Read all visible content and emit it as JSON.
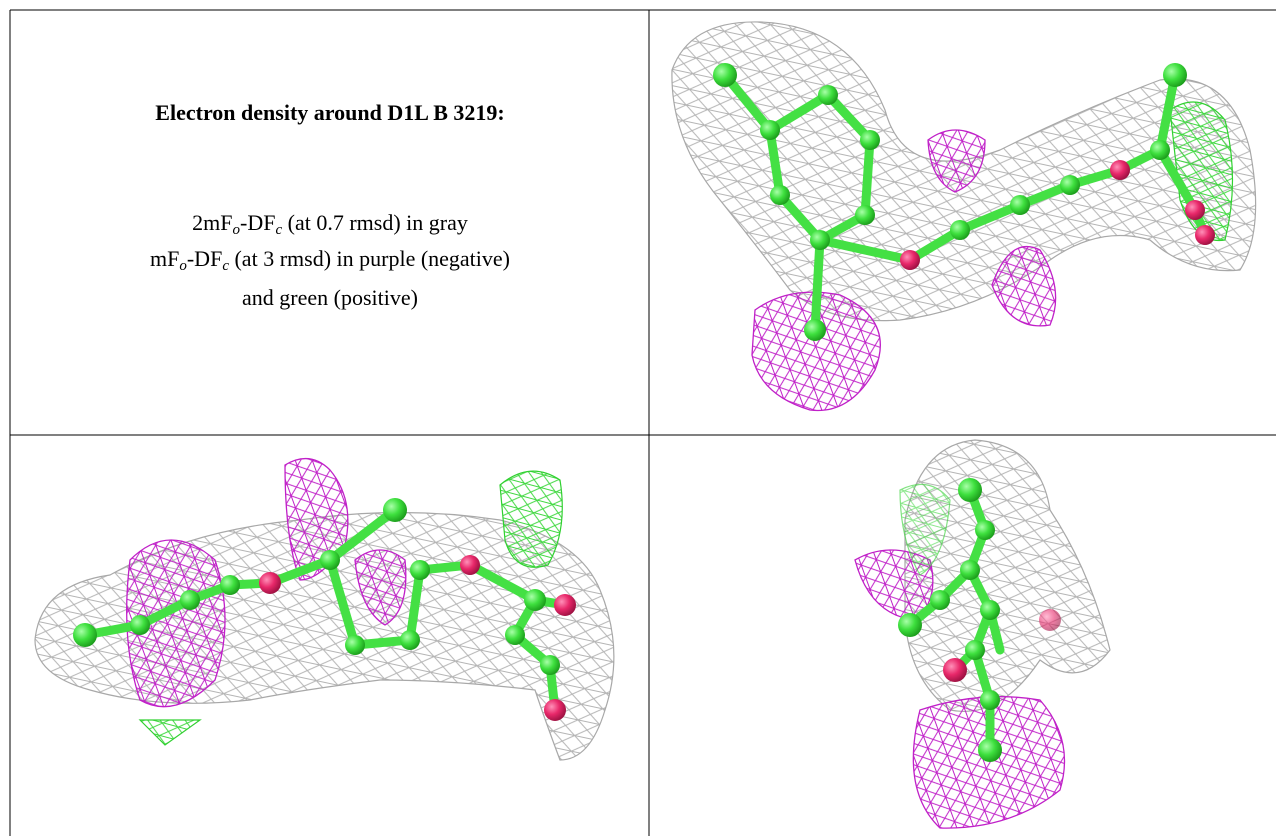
{
  "panel_text": {
    "title": "Electron density around D1L B 3219:",
    "line1": [
      "2mF",
      "o",
      "-DF",
      "c",
      " (at 0.7 rmsd) in gray"
    ],
    "line2": [
      "mF",
      "o",
      "-DF",
      "c",
      " (at 3 rmsd) in purple (negative)"
    ],
    "line3": "and green (positive)"
  }
}
